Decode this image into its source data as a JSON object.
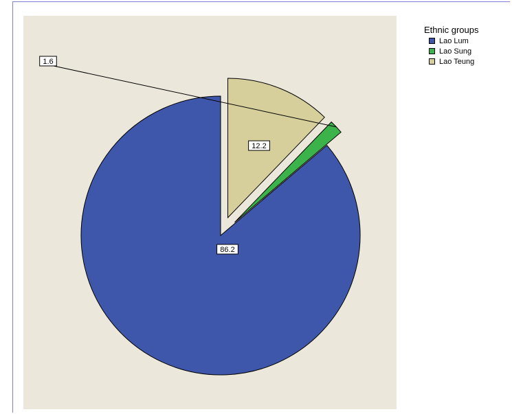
{
  "chart_data": {
    "type": "pie",
    "legend_title": "Ethnic groups",
    "legend_position": "top-right",
    "categories": [
      "Lao Lum",
      "Lao Sung",
      "Lao Teung"
    ],
    "values": [
      86.2,
      1.6,
      12.2
    ],
    "data_labels": [
      "86.2",
      "1.6",
      "12.2"
    ],
    "colors": [
      "#3f57ab",
      "#3bb34a",
      "#d7cf9b"
    ],
    "exploded": [
      false,
      true,
      true
    ],
    "plot_background": "#ebe7da",
    "title": ""
  }
}
